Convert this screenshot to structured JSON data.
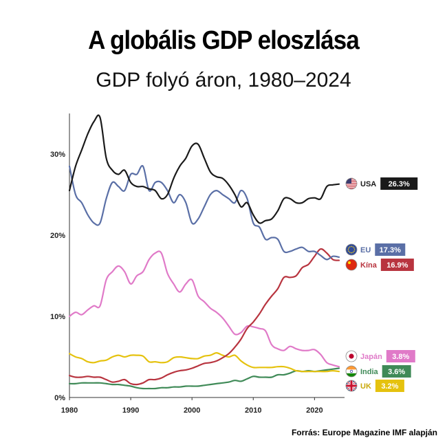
{
  "chart_data": {
    "type": "line",
    "title": "A globális GDP eloszlása",
    "subtitle": "GDP folyó áron, 1980–2024",
    "source": "Forrás: Europe Magazine IMF alapján",
    "xlim": [
      1980,
      2024
    ],
    "ylim": [
      0,
      35
    ],
    "y_ticks": [
      0,
      10,
      20,
      30
    ],
    "y_tick_labels": [
      "0%",
      "10%",
      "20%",
      "30%"
    ],
    "x_ticks": [
      1980,
      1990,
      2000,
      2010,
      2020
    ],
    "x_tick_labels": [
      "1980",
      "1990",
      "2000",
      "2010",
      "2020"
    ],
    "grid": false,
    "legend_placement": "right end of lines",
    "series": [
      {
        "name": "USA",
        "value_label": "26.3%",
        "color": "#1a1a1a",
        "flag": "us-flag",
        "x": [
          1980,
          1981,
          1982,
          1983,
          1984,
          1985,
          1986,
          1987,
          1988,
          1989,
          1990,
          1991,
          1992,
          1993,
          1994,
          1995,
          1996,
          1997,
          1998,
          1999,
          2000,
          2001,
          2002,
          2003,
          2004,
          2005,
          2006,
          2007,
          2008,
          2009,
          2010,
          2011,
          2012,
          2013,
          2014,
          2015,
          2016,
          2017,
          2018,
          2019,
          2020,
          2021,
          2022,
          2023,
          2024
        ],
        "y": [
          25.5,
          28.5,
          30.5,
          32.5,
          34.0,
          34.5,
          29.5,
          28.0,
          27.5,
          28.0,
          26.5,
          26.0,
          26.0,
          25.7,
          25.5,
          24.5,
          25.0,
          27.0,
          28.5,
          29.5,
          31.0,
          31.2,
          29.5,
          27.8,
          27.2,
          27.0,
          26.2,
          25.0,
          23.5,
          24.0,
          22.5,
          21.5,
          21.8,
          22.0,
          23.0,
          24.5,
          24.5,
          24.0,
          24.0,
          24.5,
          24.6,
          24.5,
          26.0,
          26.2,
          26.3
        ]
      },
      {
        "name": "EU",
        "value_label": "17.3%",
        "color": "#5a6fa6",
        "flag": "eu-flag",
        "x": [
          1980,
          1981,
          1982,
          1983,
          1984,
          1985,
          1986,
          1987,
          1988,
          1989,
          1990,
          1991,
          1992,
          1993,
          1994,
          1995,
          1996,
          1997,
          1998,
          1999,
          2000,
          2001,
          2002,
          2003,
          2004,
          2005,
          2006,
          2007,
          2008,
          2009,
          2010,
          2011,
          2012,
          2013,
          2014,
          2015,
          2016,
          2017,
          2018,
          2019,
          2020,
          2021,
          2022,
          2023,
          2024
        ],
        "y": [
          28.5,
          25.0,
          24.0,
          22.5,
          21.5,
          21.5,
          24.5,
          26.5,
          26.0,
          25.5,
          27.5,
          27.5,
          28.5,
          25.5,
          26.5,
          26.5,
          25.5,
          24.0,
          25.0,
          24.0,
          21.5,
          22.0,
          23.5,
          25.0,
          25.5,
          25.0,
          24.5,
          24.0,
          25.5,
          24.5,
          21.5,
          21.0,
          19.5,
          19.7,
          19.5,
          18.0,
          18.0,
          18.3,
          18.5,
          18.0,
          18.0,
          17.5,
          17.0,
          17.4,
          17.3
        ]
      },
      {
        "name": "Kína",
        "value_label": "16.9%",
        "color": "#b8343f",
        "flag": "cn-flag",
        "x": [
          1980,
          1981,
          1982,
          1983,
          1984,
          1985,
          1986,
          1987,
          1988,
          1989,
          1990,
          1991,
          1992,
          1993,
          1994,
          1995,
          1996,
          1997,
          1998,
          1999,
          2000,
          2001,
          2002,
          2003,
          2004,
          2005,
          2006,
          2007,
          2008,
          2009,
          2010,
          2011,
          2012,
          2013,
          2014,
          2015,
          2016,
          2017,
          2018,
          2019,
          2020,
          2021,
          2022,
          2023,
          2024
        ],
        "y": [
          2.7,
          2.5,
          2.5,
          2.6,
          2.5,
          2.5,
          2.2,
          1.9,
          2.0,
          2.2,
          1.7,
          1.6,
          1.8,
          2.2,
          2.2,
          2.4,
          2.8,
          3.1,
          3.3,
          3.4,
          3.6,
          3.9,
          4.2,
          4.3,
          4.5,
          4.9,
          5.4,
          6.2,
          7.2,
          8.5,
          9.3,
          10.3,
          11.5,
          12.5,
          13.4,
          14.8,
          14.8,
          15.0,
          16.0,
          16.4,
          17.4,
          18.3,
          17.8,
          17.0,
          16.9
        ]
      },
      {
        "name": "Japán",
        "value_label": "3.8%",
        "color": "#e07ac8",
        "flag": "jp-flag",
        "x": [
          1980,
          1981,
          1982,
          1983,
          1984,
          1985,
          1986,
          1987,
          1988,
          1989,
          1990,
          1991,
          1992,
          1993,
          1994,
          1995,
          1996,
          1997,
          1998,
          1999,
          2000,
          2001,
          2002,
          2003,
          2004,
          2005,
          2006,
          2007,
          2008,
          2009,
          2010,
          2011,
          2012,
          2013,
          2014,
          2015,
          2016,
          2017,
          2018,
          2019,
          2020,
          2021,
          2022,
          2023,
          2024
        ],
        "y": [
          10.0,
          10.5,
          10.2,
          10.8,
          11.3,
          11.3,
          14.5,
          15.5,
          16.2,
          15.5,
          14.0,
          15.0,
          15.5,
          17.0,
          17.8,
          17.8,
          15.3,
          14.0,
          13.0,
          14.0,
          14.5,
          12.5,
          11.8,
          11.0,
          10.5,
          9.8,
          8.8,
          7.8,
          8.0,
          8.8,
          8.7,
          8.5,
          8.2,
          6.5,
          6.0,
          5.8,
          6.3,
          6.0,
          5.8,
          5.8,
          5.9,
          5.3,
          4.3,
          4.0,
          3.8
        ]
      },
      {
        "name": "India",
        "value_label": "3.6%",
        "color": "#3f8a57",
        "flag": "in-flag",
        "x": [
          1980,
          1981,
          1982,
          1983,
          1984,
          1985,
          1986,
          1987,
          1988,
          1989,
          1990,
          1991,
          1992,
          1993,
          1994,
          1995,
          1996,
          1997,
          1998,
          1999,
          2000,
          2001,
          2002,
          2003,
          2004,
          2005,
          2006,
          2007,
          2008,
          2009,
          2010,
          2011,
          2012,
          2013,
          2014,
          2015,
          2016,
          2017,
          2018,
          2019,
          2020,
          2021,
          2022,
          2023,
          2024
        ],
        "y": [
          1.7,
          1.7,
          1.8,
          1.8,
          1.8,
          1.8,
          1.7,
          1.6,
          1.6,
          1.5,
          1.4,
          1.2,
          1.1,
          1.1,
          1.1,
          1.2,
          1.2,
          1.3,
          1.3,
          1.4,
          1.4,
          1.4,
          1.5,
          1.6,
          1.7,
          1.8,
          1.9,
          2.1,
          2.0,
          2.3,
          2.6,
          2.5,
          2.5,
          2.5,
          2.8,
          2.8,
          3.0,
          3.3,
          3.2,
          3.3,
          3.2,
          3.3,
          3.4,
          3.5,
          3.6
        ]
      },
      {
        "name": "UK",
        "value_label": "3.2%",
        "color": "#e5c20e",
        "flag": "uk-flag",
        "x": [
          1980,
          1981,
          1982,
          1983,
          1984,
          1985,
          1986,
          1987,
          1988,
          1989,
          1990,
          1991,
          1992,
          1993,
          1994,
          1995,
          1996,
          1997,
          1998,
          1999,
          2000,
          2001,
          2002,
          2003,
          2004,
          2005,
          2006,
          2007,
          2008,
          2009,
          2010,
          2011,
          2012,
          2013,
          2014,
          2015,
          2016,
          2017,
          2018,
          2019,
          2020,
          2021,
          2022,
          2023,
          2024
        ],
        "y": [
          5.4,
          5.0,
          4.8,
          4.4,
          4.3,
          4.5,
          4.6,
          5.0,
          5.2,
          5.0,
          5.2,
          5.2,
          5.1,
          4.4,
          4.4,
          4.3,
          4.4,
          4.9,
          5.0,
          4.9,
          4.8,
          4.8,
          5.1,
          5.2,
          5.5,
          5.2,
          5.0,
          5.2,
          4.5,
          4.0,
          3.7,
          3.7,
          3.7,
          3.7,
          3.8,
          3.8,
          3.6,
          3.3,
          3.2,
          3.2,
          3.2,
          3.2,
          3.2,
          3.3,
          3.2
        ]
      }
    ]
  }
}
